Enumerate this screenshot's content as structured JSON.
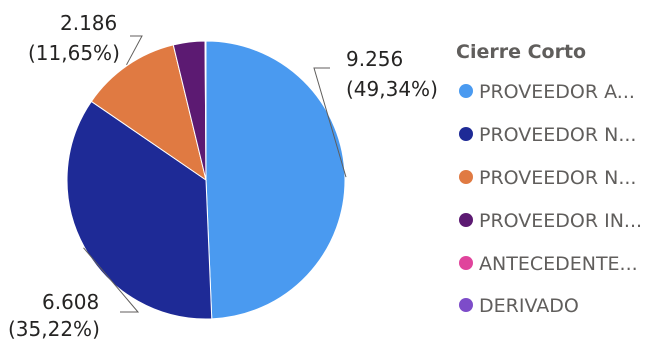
{
  "chart_data": {
    "type": "pie",
    "legend": {
      "title": "Cierre Corto",
      "placement": "right"
    },
    "slices": [
      {
        "name": "PROVEEDOR A...",
        "value": 9256,
        "label_value": "9.256",
        "label_pct": "(49,34%)",
        "color": "#4a9af0"
      },
      {
        "name": "PROVEEDOR N...",
        "value": 6608,
        "label_value": "6.608",
        "label_pct": "(35,22%)",
        "color": "#1e2a96"
      },
      {
        "name": "PROVEEDOR N...",
        "value": 2186,
        "label_value": "2.186",
        "label_pct": "(11,65%)",
        "color": "#e07a42"
      },
      {
        "name": "PROVEEDOR IN...",
        "value": 690,
        "label_value": "",
        "label_pct": "",
        "color": "#5c1a72"
      },
      {
        "name": "ANTECEDENTE...",
        "value": 15,
        "label_value": "",
        "label_pct": "",
        "color": "#e0449c"
      },
      {
        "name": "DERIVADO",
        "value": 5,
        "label_value": "",
        "label_pct": "",
        "color": "#7d4cc9"
      }
    ]
  }
}
